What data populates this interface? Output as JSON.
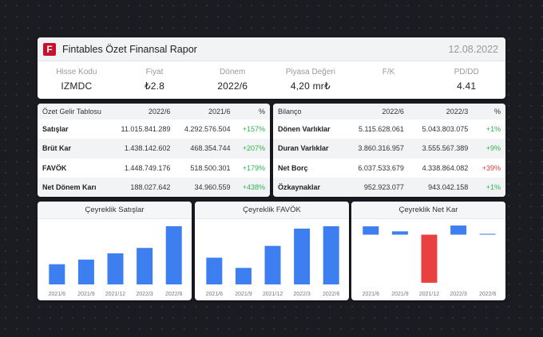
{
  "header": {
    "logo_letter": "F",
    "title": "Fintables Özet Finansal Rapor",
    "date": "12.08.2022",
    "metrics": [
      {
        "label": "Hisse Kodu",
        "value": "IZMDC"
      },
      {
        "label": "Fiyat",
        "value": "₺2.8"
      },
      {
        "label": "Dönem",
        "value": "2022/6"
      },
      {
        "label": "Piyasa Değeri",
        "value": "4,20 mr₺"
      },
      {
        "label": "F/K",
        "value": ""
      },
      {
        "label": "PD/DD",
        "value": "4.41"
      }
    ]
  },
  "income": {
    "headers": [
      "Özet Gelir Tablosu",
      "2022/6",
      "2021/6",
      "%"
    ],
    "rows": [
      [
        "Satışlar",
        "11.015.841.289",
        "4.292.576.504",
        "+157%"
      ],
      [
        "Brüt Kar",
        "1.438.142.602",
        "468.354.744",
        "+207%"
      ],
      [
        "FAVÖK",
        "1.448.749.176",
        "518.500.301",
        "+179%"
      ],
      [
        "Net Dönem Karı",
        "188.027.642",
        "34.960.559",
        "+438%"
      ]
    ]
  },
  "balance": {
    "headers": [
      "Bilanço",
      "2022/6",
      "2022/3",
      "%"
    ],
    "rows": [
      [
        "Dönen Varlıklar",
        "5.115.628.061",
        "5.043.803.075",
        "+1%"
      ],
      [
        "Duran Varlıklar",
        "3.860.316.957",
        "3.555.567.389",
        "+9%"
      ],
      [
        "Net Borç",
        "6.037.533.679",
        "4.338.864.082",
        "+39%"
      ],
      [
        "Özkaynaklar",
        "952.923.077",
        "943.042.158",
        "+1%"
      ]
    ]
  },
  "colors": {
    "positive": "#2fb350",
    "negative": "#e03b3b",
    "bar_blue": "#3d7ff0",
    "bar_red": "#e8413f",
    "logo_red": "#c8102e"
  },
  "chart_data": [
    {
      "type": "bar",
      "title": "Çeyreklik Satışlar",
      "categories": [
        "2021/6",
        "2021/9",
        "2021/12",
        "2022/3",
        "2022/6"
      ],
      "values": [
        2.6,
        3.2,
        4.0,
        4.7,
        7.5
      ],
      "ylim": [
        0,
        7.8
      ],
      "grid": false
    },
    {
      "type": "bar",
      "title": "Çeyreklik FAVÖK",
      "categories": [
        "2021/6",
        "2021/9",
        "2021/12",
        "2022/3",
        "2022/6"
      ],
      "values": [
        3.4,
        2.1,
        4.9,
        7.1,
        7.4
      ],
      "ylim": [
        0,
        7.7
      ],
      "grid": false
    },
    {
      "type": "bar",
      "title": "Çeyreklik Net Kar",
      "categories": [
        "2021/6",
        "2021/9",
        "2021/12",
        "2022/3",
        "2022/6"
      ],
      "values": [
        1.0,
        0.4,
        -5.8,
        1.1,
        0.1
      ],
      "ylim": [
        -6.0,
        1.3
      ],
      "grid": false
    }
  ]
}
